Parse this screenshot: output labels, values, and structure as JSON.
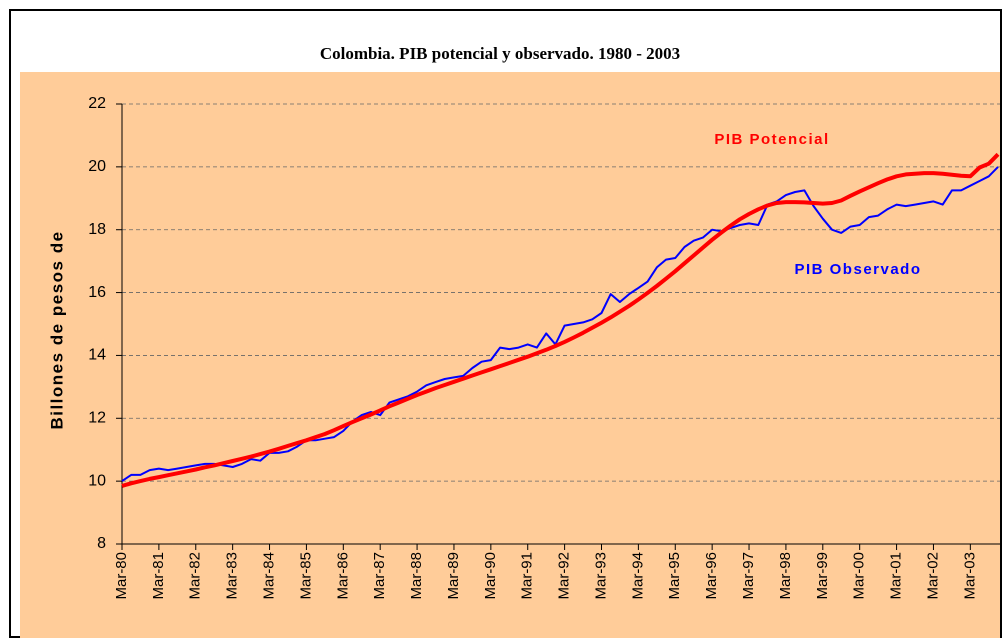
{
  "chart_data": {
    "type": "line",
    "title": "Colombia. PIB potencial y observado. 1980 - 2003",
    "y_label": "Billones de pesos de",
    "categories": [
      "Mar-80",
      null,
      null,
      null,
      "Mar-81",
      null,
      null,
      null,
      "Mar-82",
      null,
      null,
      null,
      "Mar-83",
      null,
      null,
      null,
      "Mar-84",
      null,
      null,
      null,
      "Mar-85",
      null,
      null,
      null,
      "Mar-86",
      null,
      null,
      null,
      "Mar-87",
      null,
      null,
      null,
      "Mar-88",
      null,
      null,
      null,
      "Mar-89",
      null,
      null,
      null,
      "Mar-90",
      null,
      null,
      null,
      "Mar-91",
      null,
      null,
      null,
      "Mar-92",
      null,
      null,
      null,
      "Mar-93",
      null,
      null,
      null,
      "Mar-94",
      null,
      null,
      null,
      "Mar-95",
      null,
      null,
      null,
      "Mar-96",
      null,
      null,
      null,
      "Mar-97",
      null,
      null,
      null,
      "Mar-98",
      null,
      null,
      null,
      "Mar-99",
      null,
      null,
      null,
      "Mar-00",
      null,
      null,
      null,
      "Mar-01",
      null,
      null,
      null,
      "Mar-02",
      null,
      null,
      null,
      "Mar-03",
      null,
      null,
      null
    ],
    "series": [
      {
        "name": "PIB Observado",
        "color": "#0000ff",
        "values": [
          10.0,
          10.2,
          10.2,
          10.35,
          10.4,
          10.35,
          10.4,
          10.45,
          10.5,
          10.55,
          10.55,
          10.5,
          10.45,
          10.55,
          10.7,
          10.65,
          10.9,
          10.9,
          10.95,
          11.1,
          11.3,
          11.3,
          11.35,
          11.4,
          11.6,
          11.9,
          12.1,
          12.2,
          12.1,
          12.5,
          12.6,
          12.7,
          12.85,
          13.05,
          13.15,
          13.25,
          13.3,
          13.35,
          13.6,
          13.8,
          13.85,
          14.25,
          14.2,
          14.25,
          14.35,
          14.25,
          14.7,
          14.35,
          14.95,
          15.0,
          15.05,
          15.15,
          15.35,
          15.95,
          15.7,
          15.95,
          16.15,
          16.35,
          16.8,
          17.05,
          17.1,
          17.45,
          17.65,
          17.75,
          18.0,
          17.95,
          18.05,
          18.15,
          18.2,
          18.15,
          18.8,
          18.9,
          19.1,
          19.2,
          19.25,
          18.75,
          18.35,
          18.0,
          17.9,
          18.1,
          18.15,
          18.4,
          18.45,
          18.65,
          18.8,
          18.75,
          18.8,
          18.85,
          18.9,
          18.8,
          19.25,
          19.25,
          19.4,
          19.55,
          19.7,
          20.0
        ]
      },
      {
        "name": "PIB Potencial",
        "color": "#ff0000",
        "values": [
          9.85,
          9.93,
          10.0,
          10.07,
          10.13,
          10.19,
          10.25,
          10.31,
          10.37,
          10.44,
          10.5,
          10.57,
          10.64,
          10.71,
          10.78,
          10.86,
          10.94,
          11.03,
          11.12,
          11.21,
          11.3,
          11.4,
          11.5,
          11.62,
          11.75,
          11.88,
          12.0,
          12.12,
          12.25,
          12.38,
          12.5,
          12.62,
          12.74,
          12.85,
          12.96,
          13.06,
          13.16,
          13.26,
          13.36,
          13.46,
          13.56,
          13.66,
          13.76,
          13.86,
          13.96,
          14.07,
          14.18,
          14.3,
          14.43,
          14.57,
          14.72,
          14.88,
          15.04,
          15.21,
          15.39,
          15.58,
          15.78,
          15.99,
          16.21,
          16.44,
          16.68,
          16.93,
          17.18,
          17.43,
          17.68,
          17.91,
          18.13,
          18.33,
          18.5,
          18.65,
          18.77,
          18.85,
          18.88,
          18.88,
          18.87,
          18.85,
          18.83,
          18.85,
          18.93,
          19.08,
          19.22,
          19.35,
          19.48,
          19.6,
          19.7,
          19.76,
          19.78,
          19.8,
          19.8,
          19.78,
          19.75,
          19.72,
          19.7,
          19.98,
          20.1,
          20.4
        ]
      }
    ],
    "ylim": [
      8,
      22
    ],
    "yticks": [
      8,
      10,
      12,
      14,
      16,
      18,
      20,
      22
    ],
    "grid": true
  }
}
